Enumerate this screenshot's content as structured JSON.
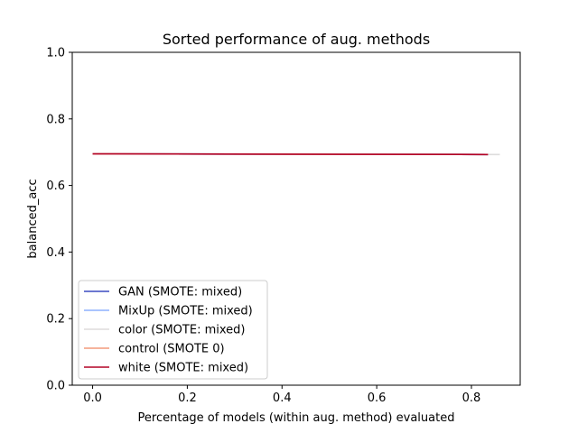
{
  "chart_data": {
    "type": "line",
    "title": "Sorted performance of aug. methods",
    "xlabel": "Percentage of models (within aug. method) evaluated",
    "ylabel": "balanced_acc",
    "xlim": [
      -0.043,
      0.903
    ],
    "ylim": [
      0.0,
      1.0
    ],
    "xticks": [
      0.0,
      0.2,
      0.4,
      0.6,
      0.8
    ],
    "xtick_labels": [
      "0.0",
      "0.2",
      "0.4",
      "0.6",
      "0.8"
    ],
    "yticks": [
      0.0,
      0.2,
      0.4,
      0.6,
      0.8,
      1.0
    ],
    "ytick_labels": [
      "0.0",
      "0.2",
      "0.4",
      "0.6",
      "0.8",
      "1.0"
    ],
    "grid": false,
    "legend_position": "lower-left",
    "series": [
      {
        "name": "GAN (SMOTE: mixed)",
        "color": "#3b4cc0",
        "x": [
          0.0,
          0.4,
          0.835
        ],
        "y": [
          0.695,
          0.694,
          0.693
        ]
      },
      {
        "name": "MixUp (SMOTE: mixed)",
        "color": "#8db0fe",
        "x": [
          0.0,
          0.4,
          0.835
        ],
        "y": [
          0.695,
          0.694,
          0.693
        ]
      },
      {
        "name": "color (SMOTE: mixed)",
        "color": "#dddcdc",
        "x": [
          0.0,
          0.4,
          0.86
        ],
        "y": [
          0.695,
          0.694,
          0.693
        ]
      },
      {
        "name": "control (SMOTE 0)",
        "color": "#f49a7b",
        "x": [
          0.0,
          0.4,
          0.835
        ],
        "y": [
          0.695,
          0.694,
          0.693
        ]
      },
      {
        "name": "white (SMOTE: mixed)",
        "color": "#b40426",
        "x": [
          0.0,
          0.4,
          0.835
        ],
        "y": [
          0.695,
          0.694,
          0.693
        ]
      }
    ]
  }
}
